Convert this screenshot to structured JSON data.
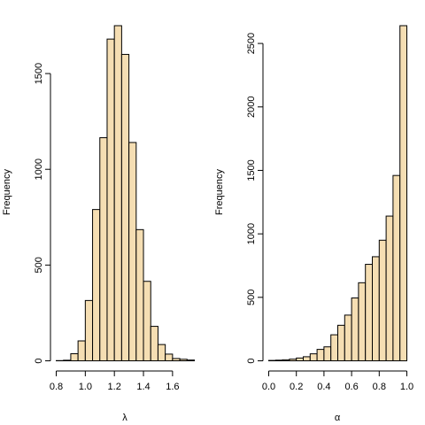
{
  "colors": {
    "bar_fill": "#F5DEB3",
    "bar_stroke": "#000000",
    "background": "#FFFFFF"
  },
  "chart_data": [
    {
      "type": "bar",
      "subtype": "histogram",
      "xlabel": "λ",
      "ylabel": "Frequency",
      "xlim": [
        0.8,
        1.75
      ],
      "ylim": [
        0,
        1750
      ],
      "xticks": [
        "0.8",
        "1.0",
        "1.2",
        "1.4",
        "1.6"
      ],
      "yticks": [
        "0",
        "500",
        "1000",
        "1500"
      ],
      "bin_width": 0.05,
      "bin_starts": [
        0.8,
        0.85,
        0.9,
        0.95,
        1.0,
        1.05,
        1.1,
        1.15,
        1.2,
        1.25,
        1.3,
        1.35,
        1.4,
        1.45,
        1.5,
        1.55,
        1.6,
        1.65,
        1.7
      ],
      "values": [
        1,
        3,
        37,
        104,
        315,
        790,
        1165,
        1680,
        1750,
        1600,
        1140,
        685,
        415,
        180,
        85,
        35,
        12,
        8,
        4
      ]
    },
    {
      "type": "bar",
      "subtype": "histogram",
      "xlabel": "α",
      "ylabel": "Frequency",
      "xlim": [
        0,
        1
      ],
      "ylim": [
        0,
        2640
      ],
      "xticks": [
        "0.0",
        "0.2",
        "0.4",
        "0.6",
        "0.8",
        "1.0"
      ],
      "yticks": [
        "0",
        "500",
        "1000",
        "1500",
        "2000",
        "2500"
      ],
      "bin_width": 0.05,
      "bin_starts": [
        0.0,
        0.05,
        0.1,
        0.15,
        0.2,
        0.25,
        0.3,
        0.35,
        0.4,
        0.45,
        0.5,
        0.55,
        0.6,
        0.65,
        0.7,
        0.75,
        0.8,
        0.85,
        0.9,
        0.95
      ],
      "values": [
        3,
        5,
        8,
        13,
        22,
        32,
        55,
        90,
        110,
        205,
        280,
        360,
        495,
        615,
        760,
        820,
        950,
        1140,
        1460,
        2640
      ]
    }
  ]
}
